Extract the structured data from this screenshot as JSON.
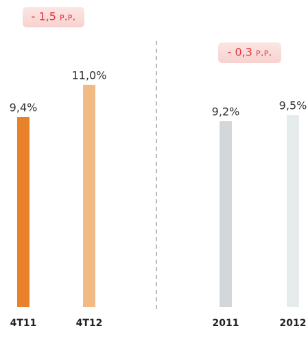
{
  "chart_data": {
    "type": "bar",
    "categories": [
      "4T11",
      "4T12",
      "2011",
      "2012"
    ],
    "values": [
      9.4,
      11.0,
      9.2,
      9.5
    ],
    "value_labels": [
      "9,4%",
      "11,0%",
      "9,2%",
      "9,5%"
    ],
    "colors": [
      "#e8822a",
      "#f2bb86",
      "#d3d7d9",
      "#e6ebec"
    ],
    "ylim": [
      0,
      15
    ],
    "annotations": [
      "- 1,5 p.p.",
      "- 0,3 p.p."
    ]
  }
}
